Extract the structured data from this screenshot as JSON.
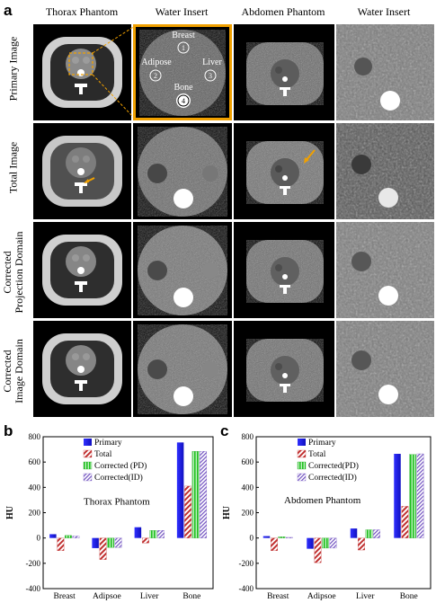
{
  "figure": {
    "panel_a": "a",
    "panel_b": "b",
    "panel_c": "c",
    "columns": [
      "Thorax Phantom",
      "Water Insert",
      "Abdomen Phantom",
      "Water Insert"
    ],
    "rows": [
      {
        "line1": "Primary Image",
        "line2": ""
      },
      {
        "line1": "Total Image",
        "line2": ""
      },
      {
        "line1": "Corrected",
        "line2": "Projection Domain"
      },
      {
        "line1": "Corrected",
        "line2": "Image Domain"
      }
    ],
    "inserts": [
      {
        "num": "1",
        "label": "Breast"
      },
      {
        "num": "2",
        "label": "Adipose"
      },
      {
        "num": "3",
        "label": "Liver"
      },
      {
        "num": "4",
        "label": "Bone"
      }
    ],
    "colors": {
      "primary": "#1f1fe0",
      "total": "#c03030",
      "pd": "#20c020",
      "id": "#7050c0",
      "highlight": "#f0a000"
    }
  },
  "chart_data": [
    {
      "type": "bar",
      "title": "Thorax Phantom",
      "ylabel": "HU",
      "ylim": [
        -400,
        800
      ],
      "yticks": [
        -400,
        -200,
        0,
        200,
        400,
        600,
        800
      ],
      "categories": [
        "Breast",
        "Adipsoe",
        "Liver",
        "Bone"
      ],
      "series": [
        {
          "name": "Primary",
          "values": [
            30,
            -80,
            85,
            755
          ]
        },
        {
          "name": "Total",
          "values": [
            -100,
            -170,
            -40,
            410
          ]
        },
        {
          "name": "Corrected (PD)",
          "values": [
            20,
            -75,
            60,
            685
          ]
        },
        {
          "name": "Corrected(ID)",
          "values": [
            15,
            -75,
            60,
            685
          ]
        }
      ],
      "legend": "top-right"
    },
    {
      "type": "bar",
      "title": "Abdomen Phantom",
      "ylabel": "HU",
      "ylim": [
        -400,
        800
      ],
      "yticks": [
        -400,
        -200,
        0,
        200,
        400,
        600,
        800
      ],
      "categories": [
        "Breast",
        "Adipsoe",
        "Liver",
        "Bone"
      ],
      "series": [
        {
          "name": "Primary",
          "values": [
            15,
            -85,
            75,
            665
          ]
        },
        {
          "name": "Total",
          "values": [
            -100,
            -195,
            -95,
            250
          ]
        },
        {
          "name": "Corrected(PD)",
          "values": [
            10,
            -80,
            65,
            660
          ]
        },
        {
          "name": "Corrected(ID)",
          "values": [
            5,
            -80,
            65,
            665
          ]
        }
      ],
      "legend": "top-right"
    }
  ]
}
